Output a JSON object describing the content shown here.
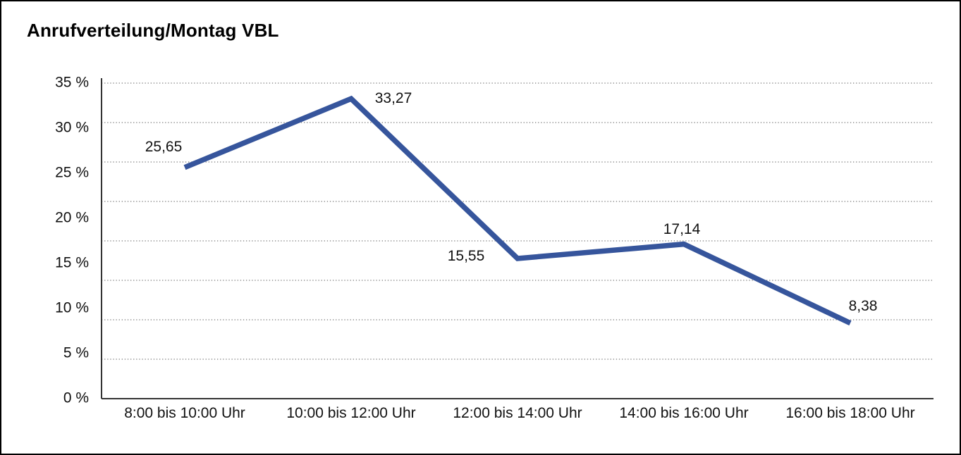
{
  "window": {
    "background": "#ffffff",
    "border_color": "#000000"
  },
  "title": "Anrufverteilung/Montag VBL",
  "chart_data": {
    "type": "line",
    "title": "Anrufverteilung/Montag VBL",
    "categories": [
      "8:00 bis 10:00 Uhr",
      "10:00 bis 12:00 Uhr",
      "12:00 bis 14:00 Uhr",
      "14:00 bis 16:00 Uhr",
      "16:00 bis 18:00 Uhr"
    ],
    "values": [
      25.65,
      33.27,
      15.55,
      17.14,
      8.38
    ],
    "point_labels": [
      "25,65",
      "33,27",
      "15,55",
      "17,14",
      "8,38"
    ],
    "y_tick_values": [
      0,
      5,
      10,
      15,
      20,
      25,
      30,
      35
    ],
    "y_tick_labels": [
      "0 %",
      "5 %",
      "10 %",
      "15 %",
      "20 %",
      "25 %",
      "30 %",
      "35 %"
    ],
    "ylim": [
      0,
      35
    ],
    "xlabel": "",
    "ylabel": "",
    "legend": false,
    "grid": {
      "horizontal": true,
      "divisions": 8,
      "style": "dotted",
      "color": "#777777"
    },
    "line_color": "#36559c",
    "axis_color": "#333333",
    "text_color": "#111111",
    "label_placements": [
      "above-left",
      "right",
      "left",
      "above",
      "above-right"
    ]
  }
}
